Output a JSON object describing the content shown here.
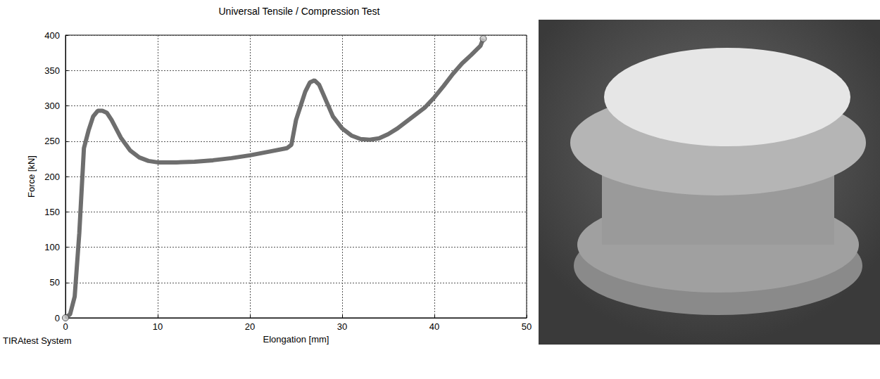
{
  "chart_data": {
    "type": "line",
    "title": "Universal Tensile / Compression Test",
    "x_label": "Elongation [mm]",
    "y_label": "Force [kN]",
    "annotation": "TIRAtest System",
    "x": [
      0,
      0.5,
      1,
      1.5,
      2,
      2.5,
      3,
      3.5,
      4,
      4.5,
      5,
      6,
      7,
      8,
      9,
      10,
      12,
      14,
      16,
      18,
      20,
      22,
      24,
      24.5,
      25,
      25.5,
      26,
      26.5,
      27,
      27.5,
      28,
      29,
      30,
      31,
      32,
      33,
      34,
      35,
      36,
      37,
      38,
      39,
      40,
      41,
      42,
      43,
      44,
      45,
      45.3
    ],
    "values": [
      0,
      5,
      30,
      120,
      240,
      265,
      285,
      293,
      293,
      290,
      280,
      255,
      237,
      227,
      222,
      220,
      220,
      221,
      223,
      226,
      230,
      235,
      240,
      245,
      280,
      300,
      320,
      333,
      336,
      330,
      315,
      285,
      268,
      258,
      253,
      252,
      254,
      260,
      268,
      278,
      288,
      298,
      312,
      328,
      345,
      360,
      372,
      385,
      395
    ],
    "color": "#6e6e6e",
    "marker": "circle",
    "xlim": [
      0,
      50
    ],
    "xticks": [
      0,
      10,
      20,
      30,
      40,
      50
    ],
    "ylim": [
      0,
      400
    ],
    "yticks": [
      0,
      50,
      100,
      150,
      200,
      250,
      300,
      350,
      400
    ],
    "grid": true
  }
}
